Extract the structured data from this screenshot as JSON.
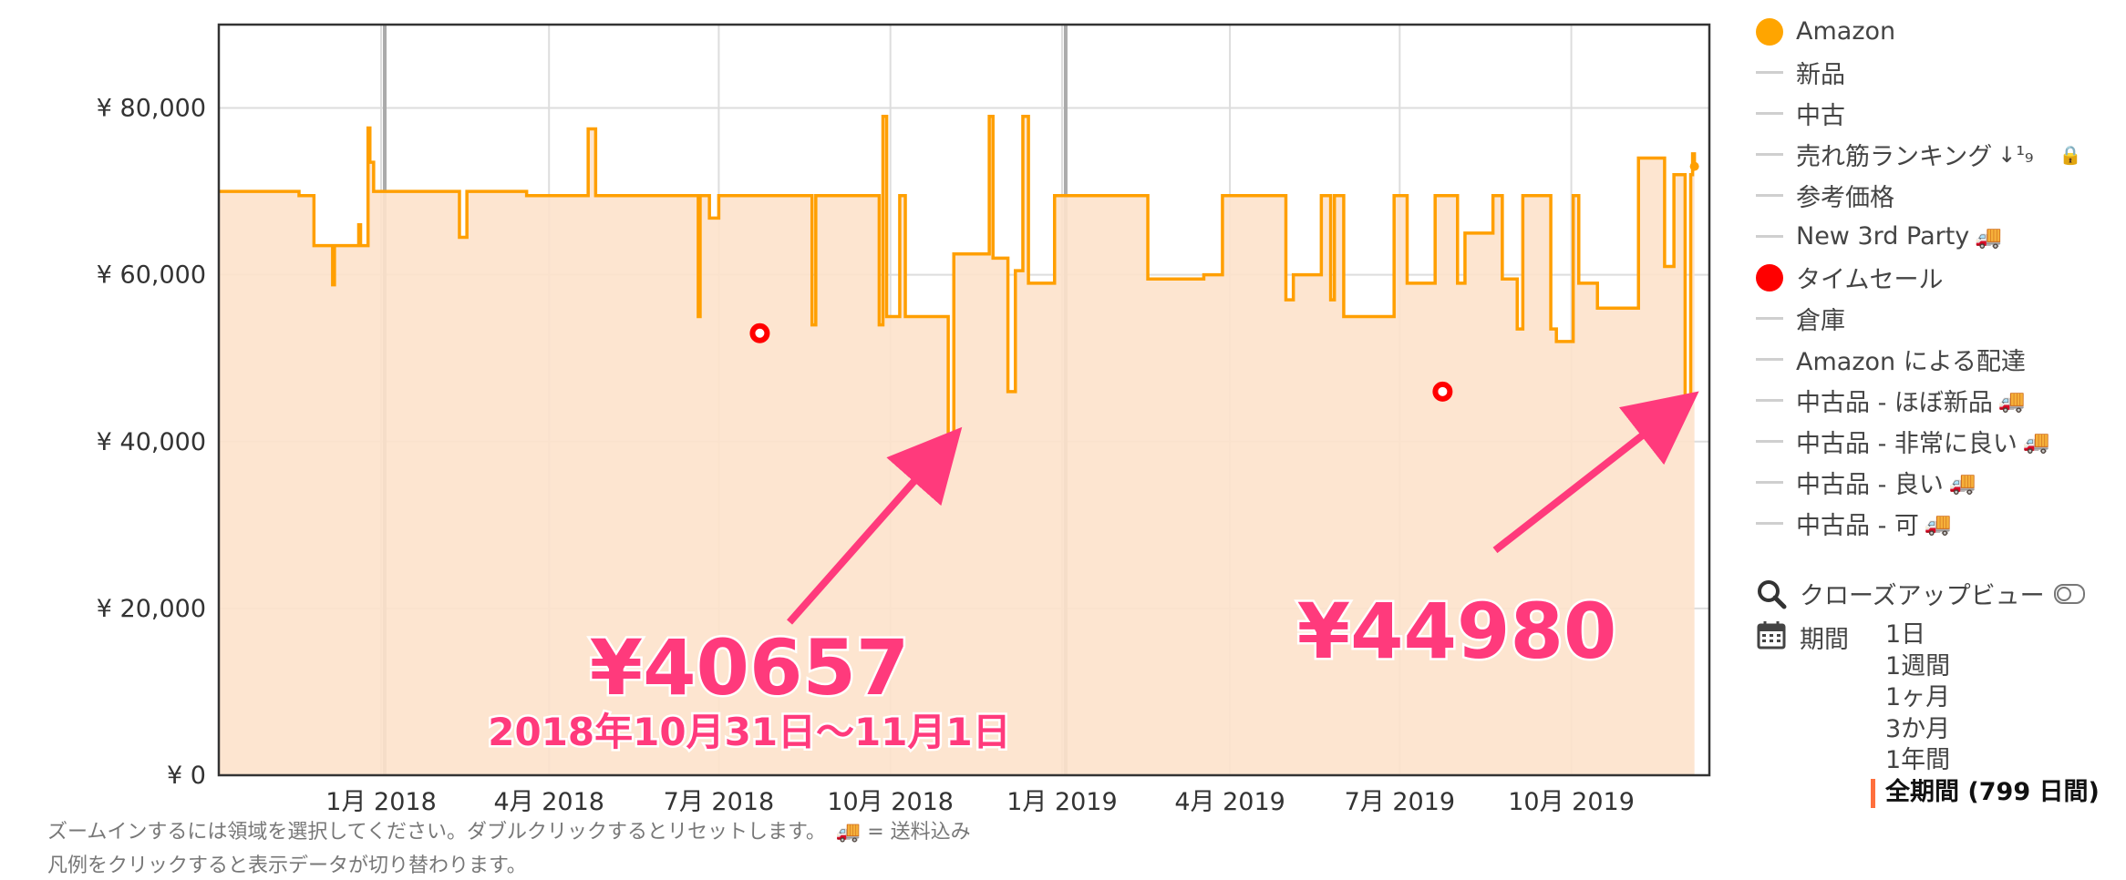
{
  "chart_data": {
    "type": "line",
    "x_axis": {
      "ticks": [
        "1月 2018",
        "4月 2018",
        "7月 2018",
        "10月 2018",
        "1月 2019",
        "4月 2019",
        "7月 2019",
        "10月 2019"
      ],
      "range": [
        "2017-10-06",
        "2019-12-14"
      ]
    },
    "y_axis": {
      "ticks": [
        "¥ 0",
        "¥ 20,000",
        "¥ 40,000",
        "¥ 60,000",
        "¥ 80,000"
      ],
      "range": [
        0,
        90000
      ]
    },
    "grid": true,
    "legend_position": "right",
    "series": [
      {
        "name": "Amazon",
        "color": "#ff9f00",
        "fill": "#fde2cb",
        "points": [
          [
            "2017-10-06",
            70000
          ],
          [
            "2017-11-18",
            69500
          ],
          [
            "2017-11-26",
            63500
          ],
          [
            "2017-12-03",
            63500
          ],
          [
            "2017-12-06",
            58800
          ],
          [
            "2017-12-07",
            63500
          ],
          [
            "2017-12-18",
            63500
          ],
          [
            "2017-12-20",
            66000
          ],
          [
            "2017-12-21",
            63500
          ],
          [
            "2017-12-24",
            63500
          ],
          [
            "2017-12-25",
            77600
          ],
          [
            "2017-12-26",
            73500
          ],
          [
            "2017-12-28",
            70000
          ],
          [
            "2018-02-12",
            64500
          ],
          [
            "2018-02-16",
            70000
          ],
          [
            "2018-03-20",
            69500
          ],
          [
            "2018-03-26",
            69500
          ],
          [
            "2018-04-02",
            69500
          ],
          [
            "2018-04-20",
            69500
          ],
          [
            "2018-04-22",
            77500
          ],
          [
            "2018-04-26",
            69500
          ],
          [
            "2018-06-20",
            55000
          ],
          [
            "2018-06-21",
            69500
          ],
          [
            "2018-06-26",
            66800
          ],
          [
            "2018-07-01",
            69500
          ],
          [
            "2018-08-20",
            54000
          ],
          [
            "2018-08-22",
            69500
          ],
          [
            "2018-09-25",
            54000
          ],
          [
            "2018-09-27",
            79000
          ],
          [
            "2018-09-29",
            55000
          ],
          [
            "2018-10-06",
            69500
          ],
          [
            "2018-10-09",
            55000
          ],
          [
            "2018-10-28",
            55000
          ],
          [
            "2018-11-01",
            40657
          ],
          [
            "2018-11-04",
            62500
          ],
          [
            "2018-11-16",
            62500
          ],
          [
            "2018-11-22",
            62500
          ],
          [
            "2018-11-23",
            79000
          ],
          [
            "2018-11-25",
            62000
          ],
          [
            "2018-12-01",
            62000
          ],
          [
            "2018-12-03",
            46000
          ],
          [
            "2018-12-07",
            60500
          ],
          [
            "2018-12-11",
            79000
          ],
          [
            "2018-12-14",
            59000
          ],
          [
            "2018-12-23",
            59000
          ],
          [
            "2018-12-28",
            69500
          ],
          [
            "2019-02-15",
            69500
          ],
          [
            "2019-02-16",
            59500
          ],
          [
            "2019-03-18",
            60000
          ],
          [
            "2019-03-28",
            69500
          ],
          [
            "2019-04-05",
            69500
          ],
          [
            "2019-04-20",
            69500
          ],
          [
            "2019-05-01",
            57000
          ],
          [
            "2019-05-05",
            60000
          ],
          [
            "2019-05-20",
            69500
          ],
          [
            "2019-05-25",
            57000
          ],
          [
            "2019-05-27",
            69500
          ],
          [
            "2019-06-01",
            55000
          ],
          [
            "2019-06-28",
            69500
          ],
          [
            "2019-07-05",
            59000
          ],
          [
            "2019-07-20",
            69500
          ],
          [
            "2019-08-01",
            59000
          ],
          [
            "2019-08-05",
            65000
          ],
          [
            "2019-08-20",
            69500
          ],
          [
            "2019-08-25",
            59500
          ],
          [
            "2019-09-02",
            53500
          ],
          [
            "2019-09-05",
            69500
          ],
          [
            "2019-09-20",
            53500
          ],
          [
            "2019-09-23",
            52000
          ],
          [
            "2019-10-02",
            69500
          ],
          [
            "2019-10-05",
            59000
          ],
          [
            "2019-10-15",
            56000
          ],
          [
            "2019-11-06",
            74000
          ],
          [
            "2019-11-20",
            61000
          ],
          [
            "2019-11-25",
            72000
          ],
          [
            "2019-12-01",
            44980
          ],
          [
            "2019-12-04",
            72000
          ],
          [
            "2019-12-05",
            74500
          ],
          [
            "2019-12-06",
            73000
          ]
        ]
      },
      {
        "name": "タイムセール",
        "color": "#ff0000",
        "points": [
          [
            "2018-07-23",
            53000
          ],
          [
            "2019-07-24",
            46000
          ]
        ]
      }
    ],
    "annotations": [
      {
        "label": "¥40657",
        "sublabel": "2018年10月31日〜11月1日",
        "x": "2018-11-01",
        "y": 40657
      },
      {
        "label": "¥44980",
        "sublabel": "",
        "x": "2019-12-01",
        "y": 44980
      }
    ]
  },
  "legend": [
    {
      "label": "Amazon",
      "marker": "dot",
      "color": "#ffa500",
      "suffix": ""
    },
    {
      "label": "新品",
      "marker": "dash",
      "suffix": ""
    },
    {
      "label": "中古",
      "marker": "dash",
      "suffix": ""
    },
    {
      "label": "売れ筋ランキング",
      "marker": "dash",
      "suffix": "↓¹₉",
      "lock": "🔒"
    },
    {
      "label": "参考価格",
      "marker": "dash",
      "suffix": ""
    },
    {
      "label": "New 3rd Party",
      "marker": "dash",
      "suffix": "🚚"
    },
    {
      "label": "タイムセール",
      "marker": "dot",
      "color": "#ff0000",
      "suffix": ""
    },
    {
      "label": "倉庫",
      "marker": "dash",
      "suffix": ""
    },
    {
      "label": "Amazon による配達",
      "marker": "dash",
      "suffix": ""
    },
    {
      "label": "中古品 - ほぼ新品",
      "marker": "dash",
      "suffix": "🚚"
    },
    {
      "label": "中古品 - 非常に良い",
      "marker": "dash",
      "suffix": "🚚"
    },
    {
      "label": "中古品 - 良い",
      "marker": "dash",
      "suffix": "🚚"
    },
    {
      "label": "中古品 - 可",
      "marker": "dash",
      "suffix": "🚚"
    }
  ],
  "closeup": {
    "label": "クローズアップビュー",
    "icon": "search-icon"
  },
  "period": {
    "label": "期間",
    "icon": "calendar-icon",
    "options": [
      "1日",
      "1週間",
      "1ヶ月",
      "3か月",
      "1年間",
      "全期間 (799 日間)"
    ],
    "active_index": 5
  },
  "footnotes": {
    "line1": "ズームインするには領域を選択してください。ダブルクリックするとリセットします。　🚚 = 送料込み",
    "line2": "凡例をクリックすると表示データが切り替わります。"
  },
  "colors": {
    "annotation": "#ff3a7c",
    "axis": "#333333",
    "grid": "#dddddd"
  }
}
